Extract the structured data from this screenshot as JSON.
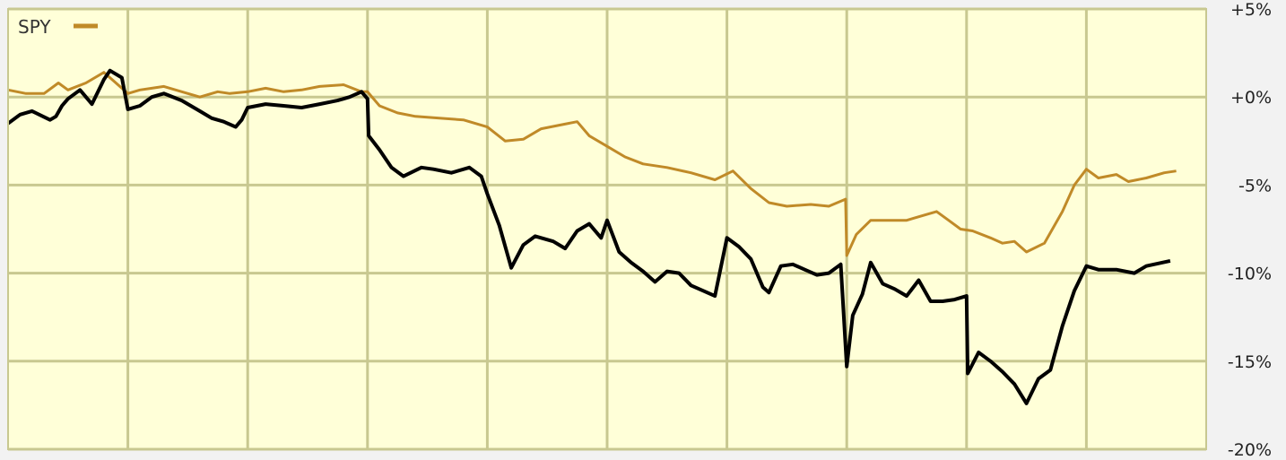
{
  "chart_data": {
    "type": "line",
    "title": "",
    "xlabel": "",
    "ylabel": "",
    "ylim": [
      -20,
      5
    ],
    "y_ticks": [
      "+5%",
      "+0%",
      "-5%",
      "-10%",
      "-15%",
      "-20%"
    ],
    "y_tick_values": [
      5,
      0,
      -5,
      -10,
      -15,
      -20
    ],
    "x_range": [
      0,
      100
    ],
    "vertical_gridlines": 10,
    "grid": true,
    "legend": {
      "position": "top-left",
      "entries": [
        "SPY"
      ]
    },
    "background_color": "#ffffd8",
    "gridline_color": "#c8c890",
    "series": [
      {
        "name": "SPY",
        "color": "#c08a28",
        "values": [
          [
            0,
            0.4
          ],
          [
            1.5,
            0.2
          ],
          [
            3,
            0.2
          ],
          [
            4.2,
            0.8
          ],
          [
            5,
            0.4
          ],
          [
            6.5,
            0.8
          ],
          [
            8,
            1.4
          ],
          [
            9.5,
            0.5
          ],
          [
            10,
            0.2
          ],
          [
            11,
            0.4
          ],
          [
            12,
            0.5
          ],
          [
            13,
            0.6
          ],
          [
            14.5,
            0.3
          ],
          [
            16,
            0.0
          ],
          [
            17.5,
            0.3
          ],
          [
            18.5,
            0.2
          ],
          [
            20,
            0.3
          ],
          [
            21.5,
            0.5
          ],
          [
            23,
            0.3
          ],
          [
            24.5,
            0.4
          ],
          [
            26,
            0.6
          ],
          [
            28,
            0.7
          ],
          [
            29.5,
            0.3
          ],
          [
            30,
            0.3
          ],
          [
            31,
            -0.5
          ],
          [
            32.5,
            -0.9
          ],
          [
            34,
            -1.1
          ],
          [
            36,
            -1.2
          ],
          [
            38,
            -1.3
          ],
          [
            40,
            -1.7
          ],
          [
            41.5,
            -2.5
          ],
          [
            43,
            -2.4
          ],
          [
            44.5,
            -1.8
          ],
          [
            46,
            -1.6
          ],
          [
            47.5,
            -1.4
          ],
          [
            48.5,
            -2.2
          ],
          [
            50,
            -2.8
          ],
          [
            51.5,
            -3.4
          ],
          [
            53,
            -3.8
          ],
          [
            55,
            -4.0
          ],
          [
            57,
            -4.3
          ],
          [
            59,
            -4.7
          ],
          [
            60.5,
            -4.2
          ],
          [
            62,
            -5.2
          ],
          [
            63.5,
            -6.0
          ],
          [
            65,
            -6.2
          ],
          [
            67,
            -6.1
          ],
          [
            68.5,
            -6.2
          ],
          [
            69.9,
            -5.8
          ],
          [
            70,
            -9.0
          ],
          [
            70.8,
            -7.8
          ],
          [
            72,
            -7.0
          ],
          [
            73.5,
            -7.0
          ],
          [
            75,
            -7.0
          ],
          [
            76.5,
            -6.7
          ],
          [
            77.5,
            -6.5
          ],
          [
            78.5,
            -7.0
          ],
          [
            79.5,
            -7.5
          ],
          [
            80.5,
            -7.6
          ],
          [
            82,
            -8.0
          ],
          [
            83,
            -8.3
          ],
          [
            84,
            -8.2
          ],
          [
            85,
            -8.8
          ],
          [
            86.5,
            -8.3
          ],
          [
            88,
            -6.5
          ],
          [
            89,
            -5.0
          ],
          [
            90,
            -4.1
          ],
          [
            91,
            -4.6
          ],
          [
            92.5,
            -4.4
          ],
          [
            93.5,
            -4.8
          ],
          [
            95,
            -4.6
          ],
          [
            96.5,
            -4.3
          ],
          [
            97.5,
            -4.2
          ]
        ]
      },
      {
        "name": "",
        "color": "#000000",
        "values": [
          [
            0,
            -1.5
          ],
          [
            1,
            -1.0
          ],
          [
            2,
            -0.8
          ],
          [
            3.5,
            -1.3
          ],
          [
            4,
            -1.1
          ],
          [
            4.5,
            -0.5
          ],
          [
            5,
            -0.1
          ],
          [
            6,
            0.4
          ],
          [
            7,
            -0.4
          ],
          [
            8,
            1.0
          ],
          [
            8.5,
            1.5
          ],
          [
            9.5,
            1.1
          ],
          [
            10,
            -0.7
          ],
          [
            11,
            -0.5
          ],
          [
            12,
            0.0
          ],
          [
            13,
            0.2
          ],
          [
            14.5,
            -0.2
          ],
          [
            16,
            -0.8
          ],
          [
            17,
            -1.2
          ],
          [
            18,
            -1.4
          ],
          [
            19,
            -1.7
          ],
          [
            19.5,
            -1.3
          ],
          [
            20,
            -0.6
          ],
          [
            21.5,
            -0.4
          ],
          [
            23,
            -0.5
          ],
          [
            24.5,
            -0.6
          ],
          [
            26,
            -0.4
          ],
          [
            27.5,
            -0.2
          ],
          [
            28.5,
            0.0
          ],
          [
            29.5,
            0.3
          ],
          [
            30,
            -0.1
          ],
          [
            30.1,
            -2.2
          ],
          [
            31,
            -3.0
          ],
          [
            32,
            -4.0
          ],
          [
            33,
            -4.5
          ],
          [
            34.5,
            -4.0
          ],
          [
            35.5,
            -4.1
          ],
          [
            37,
            -4.3
          ],
          [
            38.5,
            -4.0
          ],
          [
            39.5,
            -4.5
          ],
          [
            40,
            -5.5
          ],
          [
            41,
            -7.3
          ],
          [
            42,
            -9.7
          ],
          [
            43,
            -8.4
          ],
          [
            44,
            -7.9
          ],
          [
            45.5,
            -8.2
          ],
          [
            46.5,
            -8.6
          ],
          [
            47.5,
            -7.6
          ],
          [
            48.5,
            -7.2
          ],
          [
            49.5,
            -8.0
          ],
          [
            50,
            -7.0
          ],
          [
            51,
            -8.8
          ],
          [
            52,
            -9.4
          ],
          [
            53,
            -9.9
          ],
          [
            54,
            -10.5
          ],
          [
            55,
            -9.9
          ],
          [
            56,
            -10.0
          ],
          [
            57,
            -10.7
          ],
          [
            58,
            -11.0
          ],
          [
            59,
            -11.3
          ],
          [
            60,
            -8.0
          ],
          [
            61,
            -8.5
          ],
          [
            62,
            -9.2
          ],
          [
            63,
            -10.8
          ],
          [
            63.5,
            -11.1
          ],
          [
            64.5,
            -9.6
          ],
          [
            65.5,
            -9.5
          ],
          [
            66.5,
            -9.8
          ],
          [
            67.5,
            -10.1
          ],
          [
            68.5,
            -10.0
          ],
          [
            69.5,
            -9.5
          ],
          [
            70,
            -15.3
          ],
          [
            70.5,
            -12.4
          ],
          [
            71.3,
            -11.2
          ],
          [
            72,
            -9.4
          ],
          [
            73,
            -10.6
          ],
          [
            74,
            -10.9
          ],
          [
            75,
            -11.3
          ],
          [
            76,
            -10.4
          ],
          [
            77,
            -11.6
          ],
          [
            78,
            -11.6
          ],
          [
            79,
            -11.5
          ],
          [
            80,
            -11.3
          ],
          [
            80.1,
            -15.7
          ],
          [
            81,
            -14.5
          ],
          [
            82,
            -15.0
          ],
          [
            83,
            -15.6
          ],
          [
            84,
            -16.3
          ],
          [
            85,
            -17.4
          ],
          [
            86,
            -16.0
          ],
          [
            87,
            -15.5
          ],
          [
            88,
            -13.0
          ],
          [
            89,
            -11.0
          ],
          [
            90,
            -9.6
          ],
          [
            91,
            -9.8
          ],
          [
            92.5,
            -9.8
          ],
          [
            94,
            -10.0
          ],
          [
            95,
            -9.6
          ],
          [
            97,
            -9.3
          ]
        ]
      }
    ]
  }
}
